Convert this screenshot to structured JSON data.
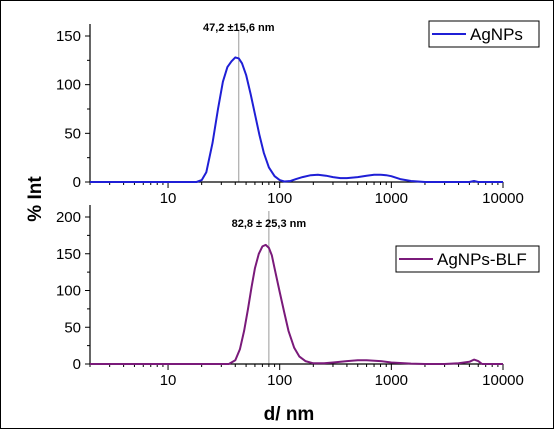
{
  "chart_data": [
    {
      "type": "line",
      "xscale": "log",
      "xlim": [
        2,
        10000
      ],
      "ylim": [
        0,
        150
      ],
      "yticks": [
        0,
        50,
        100,
        150
      ],
      "xticks": [
        10,
        100,
        1000,
        10000
      ],
      "xtick_labels": [
        "10",
        "100",
        "1000",
        "10000"
      ],
      "ytick_labels": [
        "0",
        "50",
        "100",
        "150"
      ],
      "series": [
        {
          "name": "AgNPs",
          "color": "#1f1fd6",
          "x": [
            2,
            10,
            18,
            20,
            22,
            25,
            28,
            31,
            34,
            37,
            40,
            43,
            46,
            50,
            55,
            60,
            66,
            72,
            80,
            90,
            100,
            110,
            125,
            140,
            160,
            190,
            220,
            260,
            300,
            350,
            400,
            500,
            600,
            700,
            800,
            900,
            1000,
            1200,
            1500,
            2000,
            3000,
            5000,
            5500,
            6000,
            10000
          ],
          "y": [
            0,
            0,
            0,
            2,
            10,
            40,
            75,
            103,
            118,
            124,
            128,
            127,
            122,
            110,
            90,
            70,
            48,
            30,
            15,
            6,
            2,
            0.5,
            1,
            3,
            5,
            7,
            7.5,
            6.5,
            5,
            4,
            4,
            5,
            6.5,
            7.5,
            7.5,
            7,
            6,
            3,
            1,
            0,
            0,
            0,
            1,
            0,
            0
          ]
        }
      ],
      "peak_marker_x": 43,
      "annotation": "47,2 ±15,6 nm",
      "legend": "top-right"
    },
    {
      "type": "line",
      "xscale": "log",
      "xlim": [
        2,
        10000
      ],
      "ylim": [
        0,
        200
      ],
      "yticks": [
        0,
        50,
        100,
        150,
        200
      ],
      "xticks": [
        10,
        100,
        1000,
        10000
      ],
      "xtick_labels": [
        "10",
        "100",
        "1000",
        "10000"
      ],
      "ytick_labels": [
        "0",
        "50",
        "100",
        "150",
        "200"
      ],
      "series": [
        {
          "name": "AgNPs-BLF",
          "color": "#7a1a7a",
          "x": [
            2,
            10,
            35,
            40,
            44,
            48,
            52,
            56,
            60,
            65,
            70,
            75,
            80,
            85,
            90,
            100,
            110,
            120,
            135,
            150,
            170,
            200,
            250,
            300,
            400,
            500,
            600,
            800,
            1000,
            1500,
            2000,
            3000,
            4000,
            5000,
            5500,
            6000,
            6500,
            10000
          ],
          "y": [
            0,
            0,
            0,
            5,
            20,
            45,
            75,
            105,
            130,
            150,
            160,
            162,
            158,
            148,
            130,
            98,
            70,
            45,
            22,
            10,
            4,
            1,
            1,
            2,
            4,
            5,
            5,
            4,
            2,
            0.5,
            0,
            0,
            1,
            3,
            6,
            4,
            0,
            0
          ]
        }
      ],
      "peak_marker_x": 80,
      "annotation": "82,8 ± 25,3 nm",
      "legend": "right"
    }
  ],
  "shared": {
    "ylabel": "% Int",
    "xlabel": "d/ nm"
  }
}
